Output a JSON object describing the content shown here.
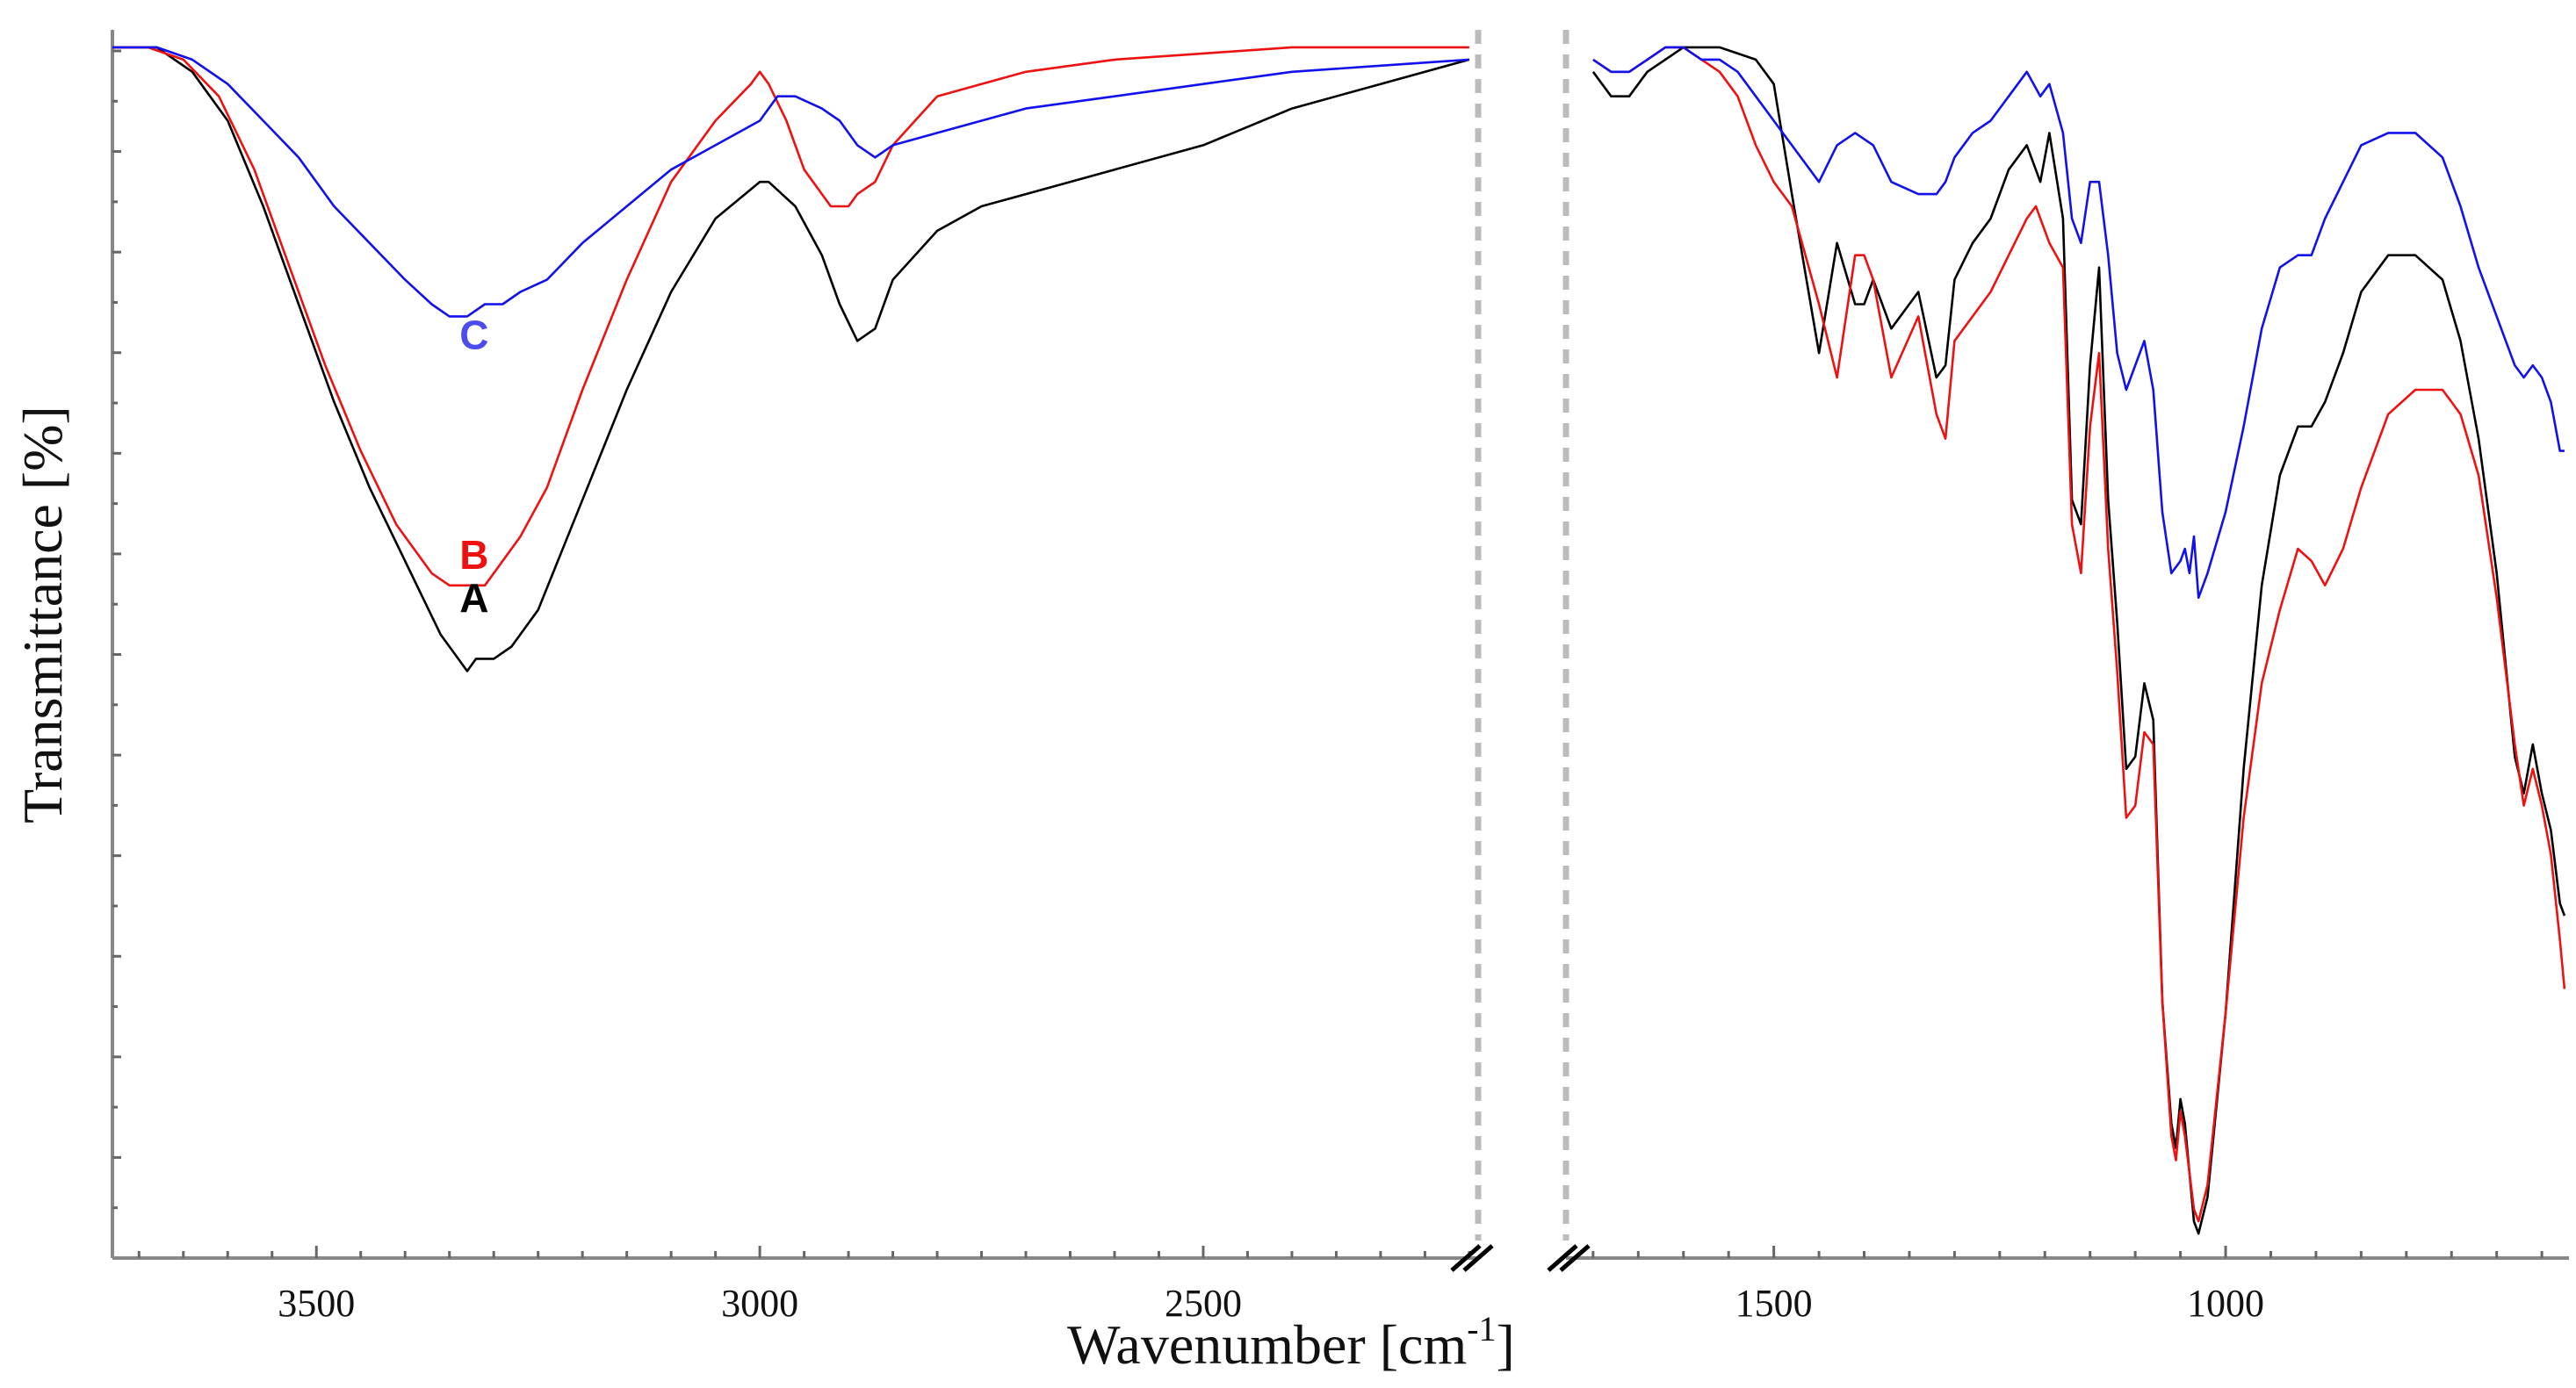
{
  "chart_data": {
    "type": "line",
    "xlabel": "Wavenumber [cm",
    "xlabel_superscript": "-1",
    "xlabel_suffix": "]",
    "ylabel": "Transmittance [%]",
    "x_axis_reversed": true,
    "y_tick_labels_shown": false,
    "axis_break": true,
    "grid": false,
    "legend": "none",
    "panels": [
      {
        "name": "left",
        "xlim": [
          3730,
          2190
        ],
        "xticks": [
          3500,
          3000,
          2500
        ]
      },
      {
        "name": "right",
        "xlim": [
          1730,
          620
        ],
        "xticks": [
          1500,
          1000
        ]
      }
    ],
    "ylim": [
      0,
      100
    ],
    "series": [
      {
        "label": "A",
        "color": "#000000",
        "label_at": [
          3330,
          54
        ],
        "x": [
          3730,
          3680,
          3640,
          3600,
          3560,
          3520,
          3480,
          3440,
          3400,
          3380,
          3360,
          3340,
          3330,
          3320,
          3300,
          3280,
          3250,
          3200,
          3150,
          3100,
          3050,
          3000,
          2990,
          2960,
          2930,
          2910,
          2890,
          2870,
          2850,
          2800,
          2750,
          2700,
          2600,
          2500,
          2400,
          2300,
          2200,
          1700,
          1680,
          1660,
          1640,
          1600,
          1560,
          1520,
          1500,
          1480,
          1450,
          1430,
          1410,
          1400,
          1390,
          1370,
          1340,
          1320,
          1310,
          1300,
          1280,
          1260,
          1240,
          1220,
          1205,
          1195,
          1180,
          1170,
          1160,
          1150,
          1140,
          1130,
          1120,
          1110,
          1100,
          1090,
          1080,
          1070,
          1060,
          1055,
          1050,
          1045,
          1035,
          1030,
          1020,
          1000,
          980,
          960,
          940,
          920,
          905,
          890,
          870,
          850,
          820,
          790,
          760,
          740,
          720,
          700,
          680,
          670,
          660,
          650,
          640,
          630,
          625
        ],
        "y": [
          99,
          99,
          97,
          93,
          86,
          78,
          70,
          63,
          57,
          54,
          51,
          49,
          48,
          49,
          49,
          50,
          53,
          62,
          71,
          79,
          85,
          88,
          88,
          86,
          82,
          78,
          75,
          76,
          80,
          84,
          86,
          87,
          89,
          91,
          94,
          96,
          98,
          97,
          95,
          95,
          97,
          99,
          99,
          98,
          96,
          87,
          74,
          83,
          78,
          78,
          80,
          76,
          79,
          72,
          73,
          80,
          83,
          85,
          89,
          91,
          88,
          92,
          85,
          62,
          60,
          73,
          81,
          62,
          52,
          40,
          41,
          47,
          44,
          21,
          11,
          9,
          13,
          11,
          3,
          2,
          5,
          20,
          40,
          55,
          64,
          68,
          68,
          70,
          74,
          79,
          82,
          82,
          80,
          75,
          67,
          56,
          41,
          38,
          42,
          38,
          35,
          29,
          28
        ]
      },
      {
        "label": "B",
        "color": "#ee1111",
        "label_at": [
          3330,
          57.5
        ],
        "x": [
          3730,
          3690,
          3650,
          3610,
          3570,
          3530,
          3490,
          3450,
          3410,
          3390,
          3370,
          3350,
          3330,
          3310,
          3290,
          3270,
          3240,
          3200,
          3150,
          3100,
          3050,
          3010,
          3000,
          2990,
          2970,
          2950,
          2920,
          2900,
          2890,
          2870,
          2850,
          2800,
          2750,
          2700,
          2600,
          2500,
          2400,
          2300,
          2200,
          1700,
          1680,
          1660,
          1640,
          1620,
          1600,
          1580,
          1560,
          1540,
          1520,
          1500,
          1480,
          1450,
          1430,
          1410,
          1400,
          1390,
          1370,
          1340,
          1320,
          1310,
          1300,
          1280,
          1260,
          1240,
          1220,
          1210,
          1195,
          1180,
          1170,
          1160,
          1150,
          1140,
          1130,
          1120,
          1110,
          1100,
          1090,
          1080,
          1070,
          1060,
          1055,
          1050,
          1045,
          1035,
          1030,
          1020,
          1000,
          980,
          960,
          940,
          920,
          905,
          890,
          870,
          850,
          820,
          790,
          760,
          740,
          720,
          700,
          680,
          670,
          660,
          650,
          640,
          630,
          625
        ],
        "y": [
          99,
          99,
          98,
          95,
          89,
          81,
          73,
          66,
          60,
          58,
          56,
          55,
          55,
          55,
          57,
          59,
          63,
          71,
          80,
          88,
          93,
          96,
          97,
          96,
          93,
          89,
          86,
          86,
          87,
          88,
          91,
          95,
          96,
          97,
          98,
          98.5,
          99,
          99,
          99,
          98,
          97,
          97,
          98,
          99,
          99,
          98,
          97,
          95,
          91,
          88,
          86,
          78,
          72,
          82,
          82,
          80,
          72,
          77,
          69,
          67,
          75,
          77,
          79,
          82,
          85,
          86,
          83,
          81,
          60,
          56,
          68,
          74,
          58,
          48,
          36,
          37,
          43,
          42,
          21,
          10,
          8,
          12,
          10,
          4,
          3,
          6,
          20,
          36,
          47,
          53,
          58,
          57,
          55,
          58,
          63,
          69,
          71,
          71,
          69,
          64,
          54,
          42,
          37,
          40,
          37,
          33,
          26,
          22
        ]
      },
      {
        "label": "C",
        "color": "#1111ee",
        "label_at": [
          3330,
          75.5
        ],
        "x": [
          3730,
          3680,
          3640,
          3600,
          3560,
          3520,
          3480,
          3440,
          3400,
          3370,
          3350,
          3330,
          3310,
          3290,
          3270,
          3240,
          3200,
          3150,
          3100,
          3050,
          3000,
          2980,
          2960,
          2930,
          2910,
          2890,
          2870,
          2850,
          2800,
          2750,
          2700,
          2600,
          2500,
          2400,
          2300,
          2200,
          1700,
          1680,
          1660,
          1640,
          1620,
          1600,
          1580,
          1560,
          1540,
          1520,
          1500,
          1480,
          1450,
          1430,
          1410,
          1390,
          1370,
          1340,
          1320,
          1310,
          1300,
          1280,
          1260,
          1240,
          1220,
          1205,
          1195,
          1180,
          1170,
          1160,
          1150,
          1140,
          1130,
          1120,
          1110,
          1100,
          1090,
          1080,
          1070,
          1060,
          1050,
          1045,
          1040,
          1035,
          1030,
          1020,
          1000,
          980,
          960,
          940,
          920,
          905,
          890,
          870,
          850,
          820,
          790,
          760,
          740,
          720,
          700,
          680,
          670,
          660,
          650,
          640,
          630,
          625
        ],
        "y": [
          99,
          99,
          98,
          96,
          93,
          90,
          86,
          83,
          80,
          78,
          77,
          77,
          78,
          78,
          79,
          80,
          83,
          86,
          89,
          91,
          93,
          95,
          95,
          94,
          93,
          91,
          90,
          91,
          92,
          93,
          94,
          95,
          96,
          97,
          97.5,
          98,
          98,
          97,
          97,
          98,
          99,
          99,
          98,
          98,
          97,
          95,
          93,
          91,
          88,
          91,
          92,
          91,
          88,
          87,
          87,
          88,
          90,
          92,
          93,
          95,
          97,
          95,
          96,
          92,
          85,
          83,
          88,
          88,
          82,
          74,
          71,
          73,
          75,
          71,
          61,
          56,
          57,
          58,
          56,
          59,
          54,
          56,
          61,
          68,
          76,
          81,
          82,
          82,
          85,
          88,
          91,
          92,
          92,
          90,
          86,
          81,
          77,
          73,
          72,
          73,
          72,
          70,
          66,
          66
        ]
      }
    ]
  }
}
